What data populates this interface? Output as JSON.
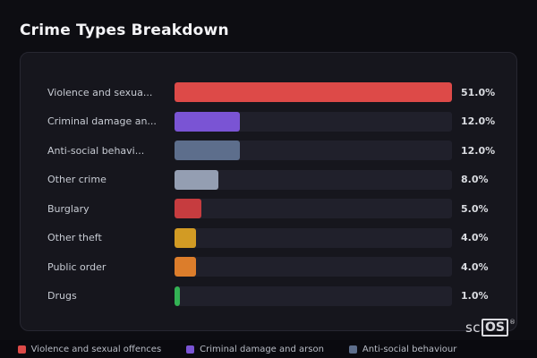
{
  "page": {
    "title": "Crime Types Breakdown"
  },
  "chart_data": {
    "type": "bar",
    "orientation": "horizontal",
    "title": "Crime Types Breakdown",
    "categories": [
      "Violence and sexual offences",
      "Criminal damage and arson",
      "Anti-social behaviour",
      "Other crime",
      "Burglary",
      "Other theft",
      "Public order",
      "Drugs"
    ],
    "display_labels": [
      "Violence and sexua...",
      "Criminal damage an...",
      "Anti-social behavi...",
      "Other crime",
      "Burglary",
      "Other theft",
      "Public order",
      "Drugs"
    ],
    "values": [
      51.0,
      12.0,
      12.0,
      8.0,
      5.0,
      4.0,
      4.0,
      1.0
    ],
    "value_labels": [
      "51.0%",
      "12.0%",
      "12.0%",
      "8.0%",
      "5.0%",
      "4.0%",
      "4.0%",
      "1.0%"
    ],
    "colors": [
      "#dd4a48",
      "#7a54d4",
      "#5d6e8c",
      "#949eb2",
      "#c63c3f",
      "#d29b24",
      "#dc7d2b",
      "#33b254"
    ],
    "bar_scale_max": 51,
    "xlim": [
      0,
      51
    ],
    "grid": false,
    "legend_position": "bottom",
    "track_color": "#20202b"
  },
  "legend": {
    "items": [
      {
        "label": "Violence and sexual offences",
        "color": "#dd4a48"
      },
      {
        "label": "Criminal damage and arson",
        "color": "#7a54d4"
      },
      {
        "label": "Anti-social behaviour",
        "color": "#5d6e8c"
      }
    ]
  },
  "branding": {
    "logo_prefix": "sc",
    "logo_box": "OS",
    "registered_mark": "®"
  }
}
